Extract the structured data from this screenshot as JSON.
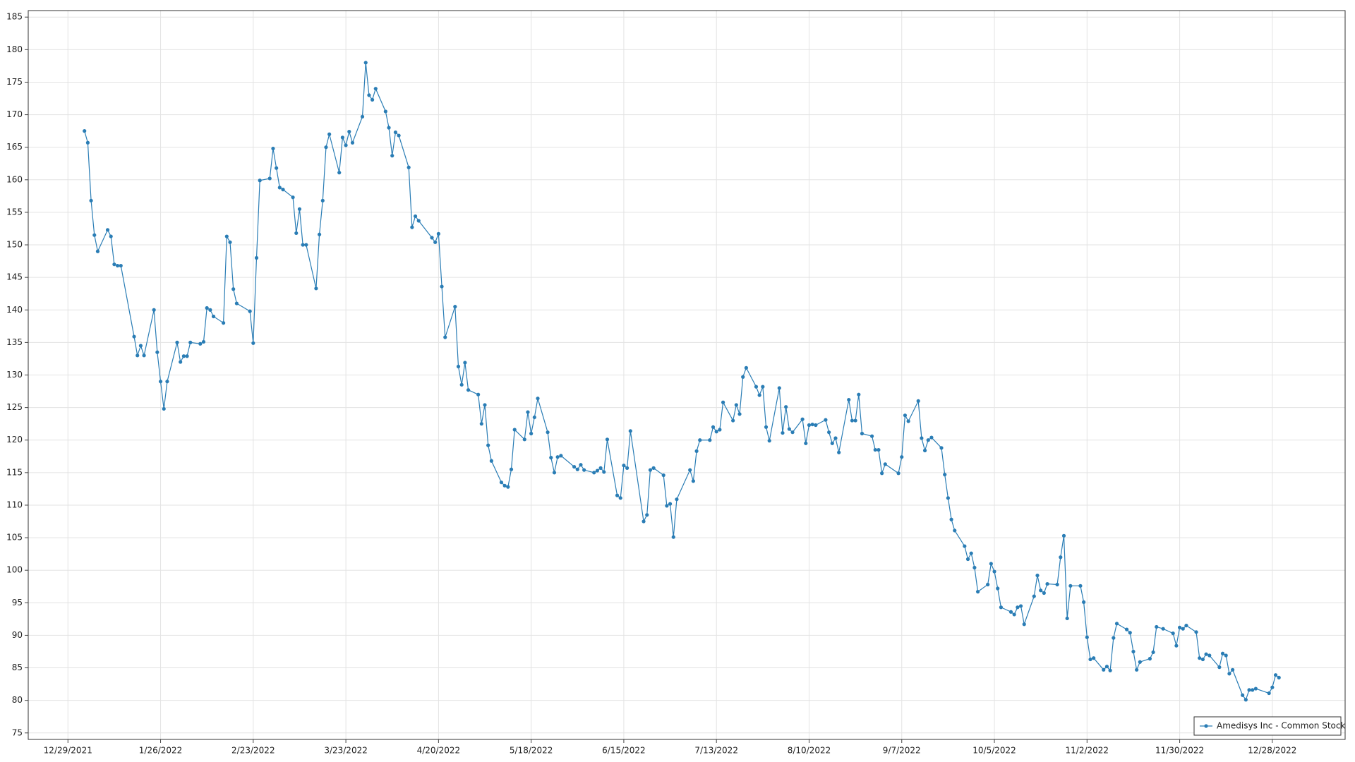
{
  "chart_data": {
    "type": "line",
    "x": [
      "1/3/2022",
      "1/4/2022",
      "1/5/2022",
      "1/6/2022",
      "1/7/2022",
      "1/10/2022",
      "1/11/2022",
      "1/12/2022",
      "1/13/2022",
      "1/14/2022",
      "1/18/2022",
      "1/19/2022",
      "1/20/2022",
      "1/21/2022",
      "1/24/2022",
      "1/25/2022",
      "1/26/2022",
      "1/27/2022",
      "1/28/2022",
      "1/31/2022",
      "2/1/2022",
      "2/2/2022",
      "2/3/2022",
      "2/4/2022",
      "2/7/2022",
      "2/8/2022",
      "2/9/2022",
      "2/10/2022",
      "2/11/2022",
      "2/14/2022",
      "2/15/2022",
      "2/16/2022",
      "2/17/2022",
      "2/18/2022",
      "2/22/2022",
      "2/23/2022",
      "2/24/2022",
      "2/25/2022",
      "2/28/2022",
      "3/1/2022",
      "3/2/2022",
      "3/3/2022",
      "3/4/2022",
      "3/7/2022",
      "3/8/2022",
      "3/9/2022",
      "3/10/2022",
      "3/11/2022",
      "3/14/2022",
      "3/15/2022",
      "3/16/2022",
      "3/17/2022",
      "3/18/2022",
      "3/21/2022",
      "3/22/2022",
      "3/23/2022",
      "3/24/2022",
      "3/25/2022",
      "3/28/2022",
      "3/29/2022",
      "3/30/2022",
      "3/31/2022",
      "4/1/2022",
      "4/4/2022",
      "4/5/2022",
      "4/6/2022",
      "4/7/2022",
      "4/8/2022",
      "4/11/2022",
      "4/12/2022",
      "4/13/2022",
      "4/14/2022",
      "4/18/2022",
      "4/19/2022",
      "4/20/2022",
      "4/21/2022",
      "4/22/2022",
      "4/25/2022",
      "4/26/2022",
      "4/27/2022",
      "4/28/2022",
      "4/29/2022",
      "5/2/2022",
      "5/3/2022",
      "5/4/2022",
      "5/5/2022",
      "5/6/2022",
      "5/9/2022",
      "5/10/2022",
      "5/11/2022",
      "5/12/2022",
      "5/13/2022",
      "5/16/2022",
      "5/17/2022",
      "5/18/2022",
      "5/19/2022",
      "5/20/2022",
      "5/23/2022",
      "5/24/2022",
      "5/25/2022",
      "5/26/2022",
      "5/27/2022",
      "5/31/2022",
      "6/1/2022",
      "6/2/2022",
      "6/3/2022",
      "6/6/2022",
      "6/7/2022",
      "6/8/2022",
      "6/9/2022",
      "6/10/2022",
      "6/13/2022",
      "6/14/2022",
      "6/15/2022",
      "6/16/2022",
      "6/17/2022",
      "6/21/2022",
      "6/22/2022",
      "6/23/2022",
      "6/24/2022",
      "6/27/2022",
      "6/28/2022",
      "6/29/2022",
      "6/30/2022",
      "7/1/2022",
      "7/5/2022",
      "7/6/2022",
      "7/7/2022",
      "7/8/2022",
      "7/11/2022",
      "7/12/2022",
      "7/13/2022",
      "7/14/2022",
      "7/15/2022",
      "7/18/2022",
      "7/19/2022",
      "7/20/2022",
      "7/21/2022",
      "7/22/2022",
      "7/25/2022",
      "7/26/2022",
      "7/27/2022",
      "7/28/2022",
      "7/29/2022",
      "8/1/2022",
      "8/2/2022",
      "8/3/2022",
      "8/4/2022",
      "8/5/2022",
      "8/8/2022",
      "8/9/2022",
      "8/10/2022",
      "8/11/2022",
      "8/12/2022",
      "8/15/2022",
      "8/16/2022",
      "8/17/2022",
      "8/18/2022",
      "8/19/2022",
      "8/22/2022",
      "8/23/2022",
      "8/24/2022",
      "8/25/2022",
      "8/26/2022",
      "8/29/2022",
      "8/30/2022",
      "8/31/2022",
      "9/1/2022",
      "9/2/2022",
      "9/6/2022",
      "9/7/2022",
      "9/8/2022",
      "9/9/2022",
      "9/12/2022",
      "9/13/2022",
      "9/14/2022",
      "9/15/2022",
      "9/16/2022",
      "9/19/2022",
      "9/20/2022",
      "9/21/2022",
      "9/22/2022",
      "9/23/2022",
      "9/26/2022",
      "9/27/2022",
      "9/28/2022",
      "9/29/2022",
      "9/30/2022",
      "10/3/2022",
      "10/4/2022",
      "10/5/2022",
      "10/6/2022",
      "10/7/2022",
      "10/10/2022",
      "10/11/2022",
      "10/12/2022",
      "10/13/2022",
      "10/14/2022",
      "10/17/2022",
      "10/18/2022",
      "10/19/2022",
      "10/20/2022",
      "10/21/2022",
      "10/24/2022",
      "10/25/2022",
      "10/26/2022",
      "10/27/2022",
      "10/28/2022",
      "10/31/2022",
      "11/1/2022",
      "11/2/2022",
      "11/3/2022",
      "11/4/2022",
      "11/7/2022",
      "11/8/2022",
      "11/9/2022",
      "11/10/2022",
      "11/11/2022",
      "11/14/2022",
      "11/15/2022",
      "11/16/2022",
      "11/17/2022",
      "11/18/2022",
      "11/21/2022",
      "11/22/2022",
      "11/23/2022",
      "11/25/2022",
      "11/28/2022",
      "11/29/2022",
      "11/30/2022",
      "12/1/2022",
      "12/2/2022",
      "12/5/2022",
      "12/6/2022",
      "12/7/2022",
      "12/8/2022",
      "12/9/2022",
      "12/12/2022",
      "12/13/2022",
      "12/14/2022",
      "12/15/2022",
      "12/16/2022",
      "12/19/2022",
      "12/20/2022",
      "12/21/2022",
      "12/22/2022",
      "12/23/2022",
      "12/27/2022",
      "12/28/2022",
      "12/29/2022",
      "12/30/2022"
    ],
    "series": [
      {
        "name": "Amedisys Inc - Common Stock",
        "color": "#2a7db5",
        "values": [
          167.5,
          165.7,
          156.8,
          151.5,
          149,
          152.3,
          151.3,
          147,
          146.8,
          146.8,
          135.9,
          133,
          134.5,
          133,
          140,
          133.5,
          129,
          124.8,
          129,
          135,
          132,
          132.9,
          132.9,
          135,
          134.8,
          135.1,
          140.3,
          140,
          139,
          138,
          151.3,
          150.4,
          143.2,
          141,
          139.8,
          134.9,
          148,
          159.9,
          160.2,
          164.8,
          161.8,
          158.8,
          158.5,
          157.3,
          151.8,
          155.5,
          150,
          150,
          143.3,
          151.6,
          156.8,
          165,
          167,
          161.1,
          166.5,
          165.3,
          167.4,
          165.7,
          169.7,
          178,
          173,
          172.3,
          174,
          170.5,
          168,
          163.7,
          167.3,
          166.8,
          161.9,
          152.7,
          154.4,
          153.7,
          151.1,
          150.4,
          151.7,
          143.6,
          135.8,
          140.5,
          131.3,
          128.5,
          131.9,
          127.7,
          127,
          122.5,
          125.4,
          119.2,
          116.8,
          113.5,
          113,
          112.8,
          115.5,
          121.6,
          120.1,
          124.3,
          121,
          123.5,
          126.4,
          121.2,
          117.3,
          115,
          117.4,
          117.6,
          115.9,
          115.5,
          116.2,
          115.4,
          115,
          115.3,
          115.7,
          115.1,
          120.1,
          111.5,
          111.1,
          116.1,
          115.7,
          121.4,
          107.5,
          108.5,
          115.4,
          115.7,
          114.6,
          109.9,
          110.2,
          105.1,
          110.9,
          115.4,
          113.7,
          118.3,
          120,
          120,
          122,
          121.3,
          121.6,
          125.8,
          123,
          125.4,
          124,
          129.7,
          131.1,
          128.2,
          126.9,
          128.2,
          122,
          119.9,
          128,
          121.1,
          125.1,
          121.7,
          121.2,
          123.2,
          119.5,
          122.3,
          122.4,
          122.3,
          123.1,
          121.2,
          119.5,
          120.3,
          118.1,
          126.2,
          123,
          123,
          127,
          121,
          120.6,
          118.5,
          118.5,
          114.9,
          116.3,
          114.9,
          117.4,
          123.8,
          122.9,
          126,
          120.3,
          118.4,
          120,
          120.4,
          118.8,
          114.7,
          111.1,
          107.8,
          106.1,
          103.7,
          101.7,
          102.6,
          100.4,
          96.7,
          97.8,
          101,
          99.8,
          97.2,
          94.3,
          93.6,
          93.2,
          94.3,
          94.5,
          91.7,
          96,
          99.2,
          96.9,
          96.5,
          97.9,
          97.8,
          102,
          105.3,
          92.6,
          97.6,
          97.6,
          95.1,
          89.7,
          86.3,
          86.5,
          84.7,
          85.2,
          84.6,
          89.6,
          91.8,
          90.9,
          90.4,
          87.5,
          84.7,
          85.9,
          86.4,
          87.4,
          91.3,
          91,
          90.3,
          88.4,
          91.2,
          91,
          91.5,
          90.5,
          86.5,
          86.3,
          87.1,
          86.9,
          85.1,
          87.2,
          86.9,
          84.1,
          84.7,
          80.8,
          80.1,
          81.6,
          81.6,
          81.8,
          81.1,
          82,
          83.9,
          83.5
        ]
      }
    ],
    "xlim": [
      "12/17/2021",
      "1/19/2023"
    ],
    "xticks": [
      "12/29/2021",
      "1/26/2022",
      "2/23/2022",
      "3/23/2022",
      "4/20/2022",
      "5/18/2022",
      "6/15/2022",
      "7/13/2022",
      "8/10/2022",
      "9/7/2022",
      "10/5/2022",
      "11/2/2022",
      "11/30/2022",
      "12/28/2022"
    ],
    "ylim": [
      74,
      186
    ],
    "yticks": [
      75,
      80,
      85,
      90,
      95,
      100,
      105,
      110,
      115,
      120,
      125,
      130,
      135,
      140,
      145,
      150,
      155,
      160,
      165,
      170,
      175,
      180,
      185
    ],
    "grid": true,
    "legend": "lower right"
  }
}
